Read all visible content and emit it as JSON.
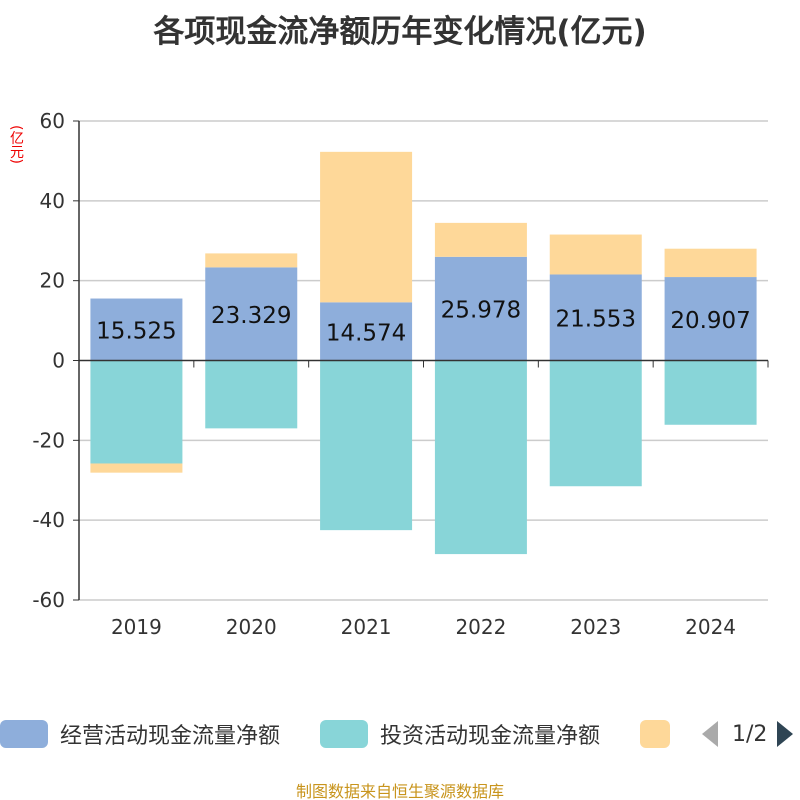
{
  "chart_data": {
    "type": "bar",
    "stacked": true,
    "title": "各项现金流净额历年变化情况(亿元)",
    "ylabel": "(亿元)",
    "ylim": [
      -60,
      60
    ],
    "yticks": [
      60,
      40,
      20,
      0,
      -20,
      -40,
      -60
    ],
    "categories": [
      "2019",
      "2020",
      "2021",
      "2022",
      "2023",
      "2024"
    ],
    "series": [
      {
        "name": "经营活动现金流量净额",
        "color": "#8eaedb",
        "values": [
          15.525,
          23.329,
          14.574,
          25.978,
          21.553,
          20.907
        ],
        "labels": [
          "15.525",
          "23.329",
          "14.574",
          "25.978",
          "21.553",
          "20.907"
        ]
      },
      {
        "name": "投资活动现金流量净额",
        "color": "#88d5d8",
        "values": [
          -25.8,
          -17.0,
          -42.5,
          -48.5,
          -31.5,
          -16.1
        ]
      },
      {
        "name": "",
        "color": "#fed899",
        "values": [
          -2.3,
          3.5,
          37.7,
          8.5,
          10.0,
          7.1
        ]
      }
    ],
    "legend": "bottom",
    "grid": true
  },
  "legend": {
    "page": "1/2"
  },
  "footer": "制图数据来自恒生聚源数据库"
}
